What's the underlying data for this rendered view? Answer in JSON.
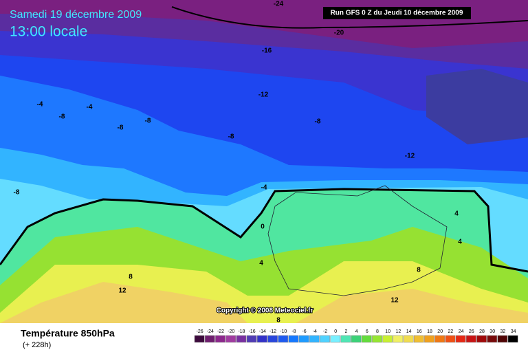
{
  "header": {
    "title": "Samedi 19 décembre 2009",
    "subtitle": "13:00 locale",
    "run": "Run GFS 0 Z du Jeudi 10 décembre 2009"
  },
  "map": {
    "contour_labels": [
      -24,
      -20,
      -16,
      -12,
      -4,
      -4,
      -8,
      -8,
      -8,
      -8,
      -8,
      -12,
      -8,
      -4,
      0,
      4,
      8,
      12,
      4,
      4,
      8,
      12,
      8
    ],
    "copyright": "Copyright © 2008 Meteociel.fr"
  },
  "footer": {
    "title": "Température 850hPa",
    "lead": "(+ 228h)"
  },
  "scale": {
    "values": [
      -26,
      -24,
      -22,
      -20,
      -18,
      -16,
      -14,
      -12,
      -10,
      -8,
      -6,
      -4,
      -2,
      0,
      2,
      4,
      6,
      8,
      10,
      12,
      14,
      16,
      18,
      20,
      22,
      24,
      26,
      28,
      30,
      32,
      34
    ],
    "colors": [
      "#3c0a3c",
      "#6e1e6e",
      "#8c288c",
      "#a03ca0",
      "#7830a0",
      "#503cb4",
      "#3232c8",
      "#2846dc",
      "#1e5af0",
      "#1478ff",
      "#1e9bff",
      "#32b4ff",
      "#50d2ff",
      "#78f0ff",
      "#50e6b4",
      "#3cd278",
      "#64dc3c",
      "#96e632",
      "#c8f032",
      "#f0f064",
      "#f0dc50",
      "#f0be32",
      "#f0a01e",
      "#f07814",
      "#f05014",
      "#e62814",
      "#c81414",
      "#a00a0a",
      "#780a0a",
      "#500505",
      "#000000"
    ]
  }
}
